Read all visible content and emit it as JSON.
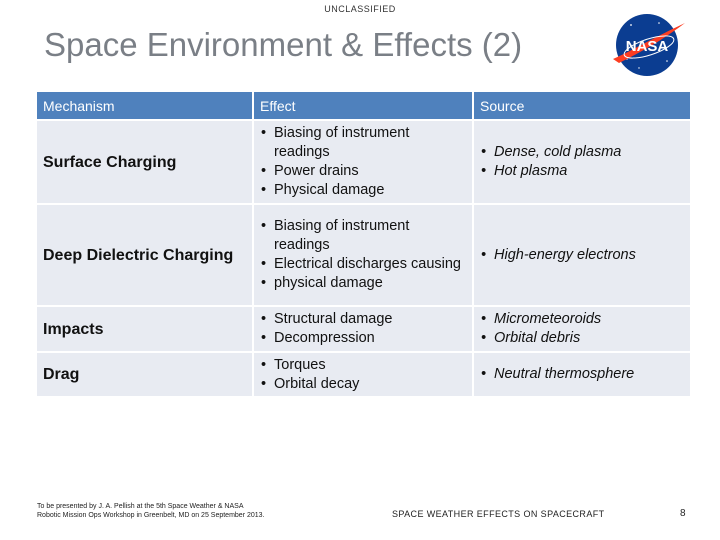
{
  "classification": "UNCLASSIFIED",
  "title": "Space Environment & Effects (2)",
  "logo": {
    "text": "NASA",
    "colors": {
      "circle": "#0b3d91",
      "chevron": "#fc3d21",
      "text": "#ffffff"
    }
  },
  "table": {
    "headers": [
      "Mechanism",
      "Effect",
      "Source"
    ],
    "rows": [
      {
        "mechanism": "Surface Charging",
        "effects": [
          "Biasing of instrument readings",
          "Power drains",
          "Physical damage"
        ],
        "sources": [
          "Dense, cold plasma",
          "Hot plasma"
        ]
      },
      {
        "mechanism": "Deep Dielectric Charging",
        "effects": [
          "Biasing of instrument readings",
          "Electrical discharges causing",
          "physical damage"
        ],
        "sources": [
          "High-energy electrons"
        ]
      },
      {
        "mechanism": "Impacts",
        "effects": [
          "Structural damage",
          "Decompression"
        ],
        "sources": [
          "Micrometeoroids",
          "Orbital debris"
        ]
      },
      {
        "mechanism": "Drag",
        "effects": [
          "Torques",
          "Orbital decay"
        ],
        "sources": [
          "Neutral thermosphere"
        ]
      }
    ],
    "colors": {
      "header": "#4f81bd",
      "body": "#e8ebf2"
    }
  },
  "footer": {
    "left_line1": "To be presented by J. A. Pellish at the 5th Space Weather & NASA",
    "left_line2": "Robotic Mission Ops Workshop in Greenbelt, MD on 25 September 2013.",
    "center": "SPACE WEATHER EFFECTS ON SPACECRAFT",
    "page": "8"
  }
}
